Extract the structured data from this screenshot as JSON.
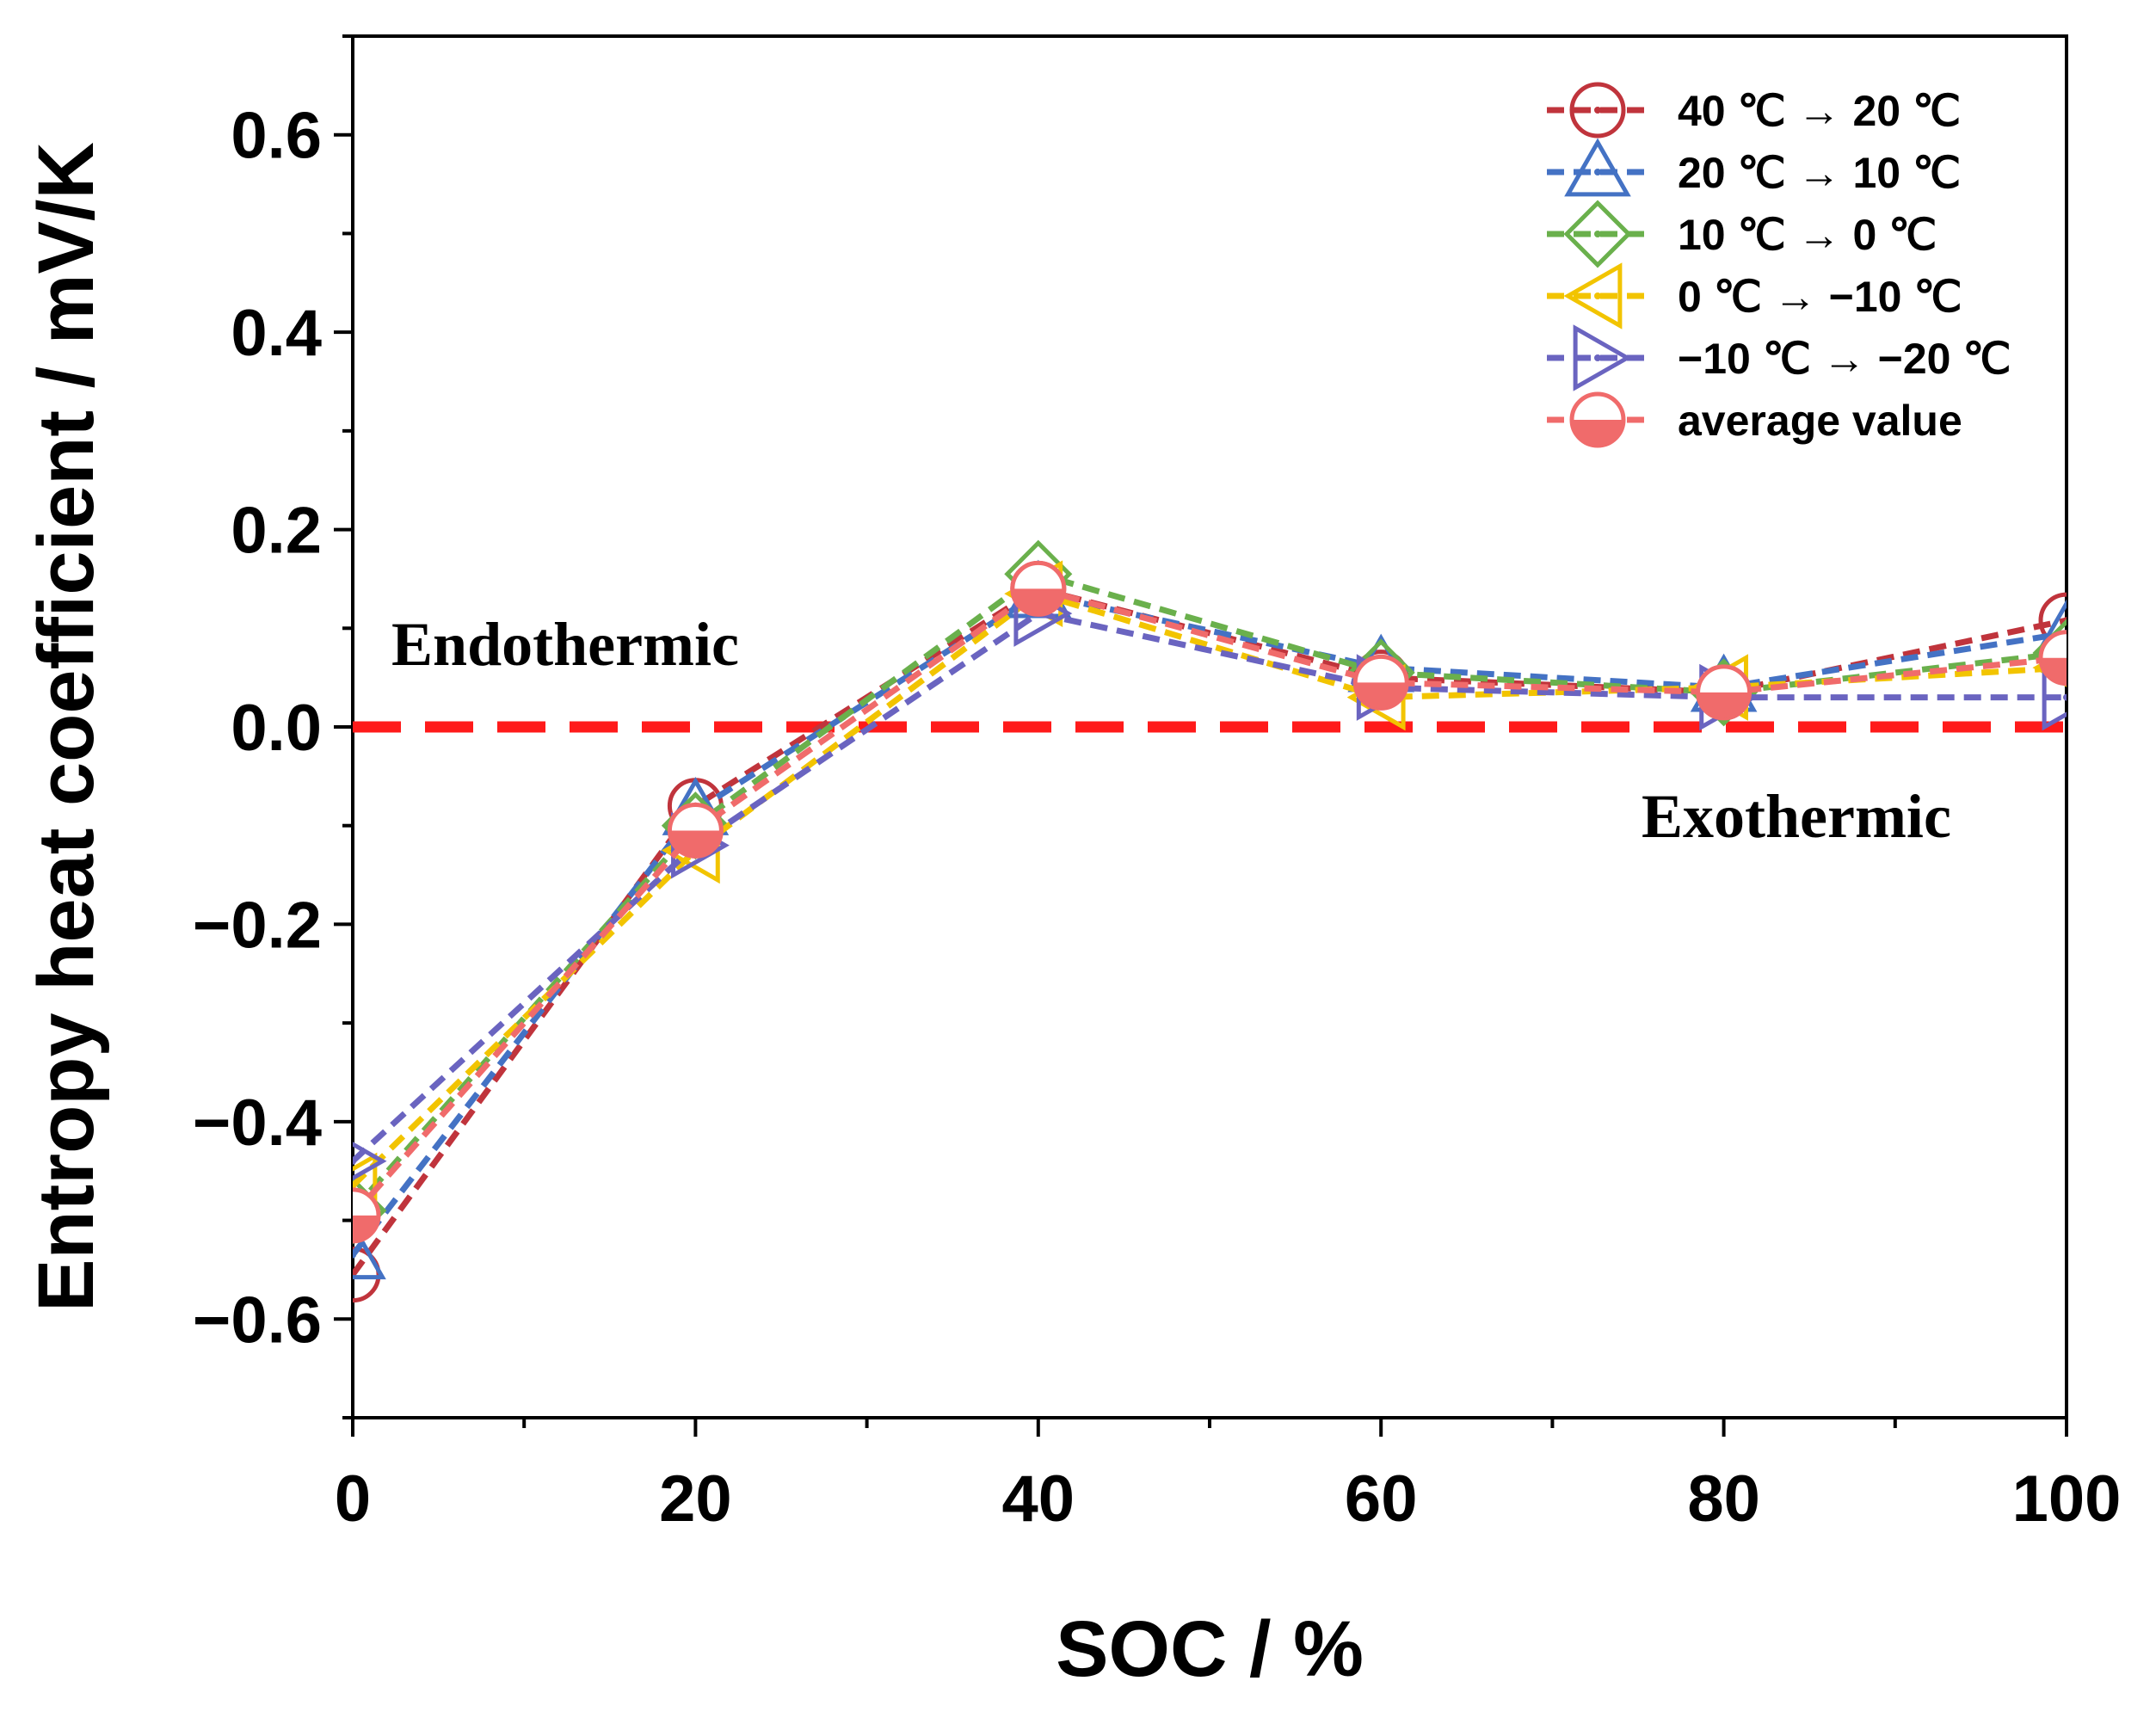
{
  "chart_data": {
    "type": "line",
    "xlabel": "SOC / %",
    "ylabel": "Entropy heat coefficient / mV/K",
    "xlim": [
      0,
      100
    ],
    "ylim": [
      -0.7,
      0.7
    ],
    "x_ticks": [
      "0",
      "20",
      "40",
      "60",
      "80",
      "100"
    ],
    "y_ticks": [
      {
        "value": -0.6,
        "label": "−0.6"
      },
      {
        "value": -0.4,
        "label": "−0.4"
      },
      {
        "value": -0.2,
        "label": "−0.2"
      },
      {
        "value": 0.0,
        "label": "0.0"
      },
      {
        "value": 0.2,
        "label": "0.2"
      },
      {
        "value": 0.4,
        "label": "0.4"
      },
      {
        "value": 0.6,
        "label": "0.6"
      }
    ],
    "grid": false,
    "legend_position": "top-right",
    "x": [
      0,
      20,
      40,
      60,
      80,
      100
    ],
    "series": [
      {
        "name": "40 ℃ → 20 ℃",
        "color": "#c0343c",
        "marker": "circle-dot",
        "values": [
          -0.555,
          -0.08,
          0.14,
          0.05,
          0.035,
          0.108
        ]
      },
      {
        "name": "20 ℃ → 10 ℃",
        "color": "#4472c4",
        "marker": "triangle-up",
        "values": [
          -0.535,
          -0.085,
          0.135,
          0.06,
          0.04,
          0.095
        ]
      },
      {
        "name": "10 ℃ → 0 ℃",
        "color": "#6ab04c",
        "marker": "diamond-dot",
        "values": [
          -0.49,
          -0.1,
          0.155,
          0.055,
          0.035,
          0.075
        ]
      },
      {
        "name": "0 ℃ → −10 ℃",
        "color": "#f2c400",
        "marker": "triangle-left",
        "values": [
          -0.465,
          -0.125,
          0.135,
          0.03,
          0.04,
          0.06
        ]
      },
      {
        "name": "−10 ℃ → −20 ℃",
        "color": "#6a64c0",
        "marker": "triangle-right",
        "values": [
          -0.44,
          -0.12,
          0.115,
          0.04,
          0.03,
          0.03
        ]
      },
      {
        "name": "average value",
        "color": "#f06b6b",
        "marker": "circle-half",
        "values": [
          -0.495,
          -0.105,
          0.14,
          0.045,
          0.035,
          0.07
        ]
      }
    ],
    "reference_line": {
      "y": 0,
      "color": "#ff1a1a",
      "style": "dashed"
    },
    "annotations": [
      {
        "text": "Endothermic",
        "anchor": "above-zero-left"
      },
      {
        "text": "Exothermic",
        "anchor": "below-zero-right"
      }
    ]
  }
}
